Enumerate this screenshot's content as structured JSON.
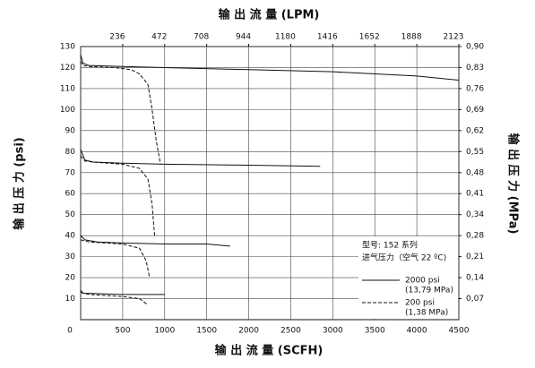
{
  "chart_data": {
    "type": "line",
    "title": "输 出 流 量 (LPM)",
    "x_label": "输 出 流 量 (SCFH)",
    "y_label": "输 出 压 力 (psi)",
    "y2_label": "输 出 压 力 (MPa)",
    "xlim": [
      0,
      4500
    ],
    "xticks": [
      0,
      500,
      1000,
      1500,
      2000,
      2500,
      3000,
      3500,
      4000,
      4500
    ],
    "x2ticks": [
      {
        "value": 500,
        "label": "236"
      },
      {
        "value": 1000,
        "label": "472"
      },
      {
        "value": 1500,
        "label": "708"
      },
      {
        "value": 2000,
        "label": "944"
      },
      {
        "value": 2500,
        "label": "1180"
      },
      {
        "value": 3000,
        "label": "1416"
      },
      {
        "value": 3500,
        "label": "1652"
      },
      {
        "value": 4000,
        "label": "1888"
      },
      {
        "value": 4500,
        "label": "2123"
      }
    ],
    "ylim": [
      0,
      130
    ],
    "yticks": [
      10,
      20,
      30,
      40,
      50,
      60,
      70,
      80,
      90,
      100,
      110,
      120,
      130
    ],
    "y2lim": [
      0,
      0.8963
    ],
    "y2ticks": [
      {
        "value": 0.0689,
        "label": "0,07"
      },
      {
        "value": 0.1379,
        "label": "0,14"
      },
      {
        "value": 0.2068,
        "label": "0,21"
      },
      {
        "value": 0.2758,
        "label": "0,28"
      },
      {
        "value": 0.3447,
        "label": "0,34"
      },
      {
        "value": 0.4137,
        "label": "0,41"
      },
      {
        "value": 0.4826,
        "label": "0,48"
      },
      {
        "value": 0.5516,
        "label": "0,55"
      },
      {
        "value": 0.6205,
        "label": "0,62"
      },
      {
        "value": 0.6895,
        "label": "0,69"
      },
      {
        "value": 0.7584,
        "label": "0,76"
      },
      {
        "value": 0.8274,
        "label": "0,83"
      },
      {
        "value": 0.8963,
        "label": "0,90"
      }
    ],
    "grid": true,
    "legend_title": [
      "型号: 152 系列",
      "进气压力（空气 22 ºC)"
    ],
    "series": [
      {
        "name": "2000 psi",
        "name_note": "(13,79 MPa)",
        "color": "#111111",
        "dashed": false,
        "curves": [
          {
            "x": [
              0,
              30,
              100,
              500,
              1000,
              2000,
              3000,
              4000,
              4500
            ],
            "values": [
              126,
              122,
              121,
              120.5,
              120,
              119,
              118,
              116,
              114
            ]
          },
          {
            "x": [
              0,
              50,
              150,
              500,
              1000,
              2000,
              2850
            ],
            "values": [
              81,
              76,
              75,
              74.5,
              74,
              73.5,
              73
            ]
          },
          {
            "x": [
              0,
              50,
              200,
              500,
              1000,
              1500,
              1780
            ],
            "values": [
              40,
              38,
              37,
              36.5,
              36,
              36,
              35
            ]
          },
          {
            "x": [
              0,
              30,
              100,
              500,
              1000
            ],
            "values": [
              14,
              12.5,
              12.5,
              12,
              12
            ]
          }
        ]
      },
      {
        "name": "200 psi",
        "name_note": "(1,38 MPa)",
        "color": "#111111",
        "dashed": true,
        "curves": [
          {
            "x": [
              0,
              30,
              100,
              400,
              600,
              700,
              800,
              850,
              900,
              950
            ],
            "values": [
              123,
              121,
              120.5,
              120,
              119,
              117,
              112,
              100,
              85,
              74
            ]
          },
          {
            "x": [
              0,
              50,
              150,
              500,
              700,
              800,
              850,
              870,
              880
            ],
            "values": [
              78,
              75.5,
              75,
              74,
              72,
              67,
              55,
              45,
              40
            ]
          },
          {
            "x": [
              0,
              100,
              500,
              700,
              780,
              820
            ],
            "values": [
              38,
              37,
              36,
              34,
              28,
              20
            ]
          },
          {
            "x": [
              0,
              100,
              500,
              700,
              800
            ],
            "values": [
              13,
              12,
              11,
              10,
              7
            ]
          }
        ]
      }
    ]
  }
}
